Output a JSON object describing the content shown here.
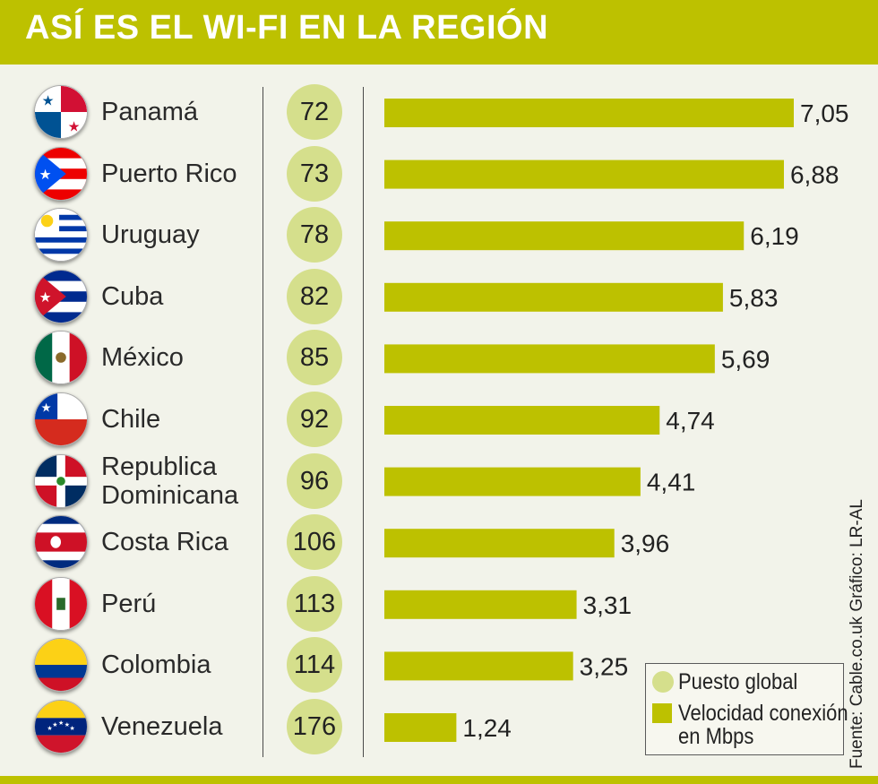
{
  "title": "ASÍ ES EL WI-FI EN LA REGIÓN",
  "legend": {
    "rank": "Puesto global",
    "speed_line1": "Velocidad conexión",
    "speed_line2": "en Mbps"
  },
  "source": "Fuente: Cable.co.uk   Gráfico: LR-AL",
  "colors": {
    "bar": "#bdc100",
    "rank_circle": "#d5df8c",
    "background": "#f2f3ea"
  },
  "chart_data": {
    "type": "bar",
    "orientation": "horizontal",
    "categories": [
      "Panamá",
      "Puerto Rico",
      "Uruguay",
      "Cuba",
      "México",
      "Chile",
      "Republica Dominicana",
      "Costa Rica",
      "Perú",
      "Colombia",
      "Venezuela"
    ],
    "category_lines": [
      [
        "Panamá"
      ],
      [
        "Puerto Rico"
      ],
      [
        "Uruguay"
      ],
      [
        "Cuba"
      ],
      [
        "México"
      ],
      [
        "Chile"
      ],
      [
        "Republica",
        "Dominicana"
      ],
      [
        "Costa Rica"
      ],
      [
        "Perú"
      ],
      [
        "Colombia"
      ],
      [
        "Venezuela"
      ]
    ],
    "flags": [
      "panama-flag-icon",
      "puerto-rico-flag-icon",
      "uruguay-flag-icon",
      "cuba-flag-icon",
      "mexico-flag-icon",
      "chile-flag-icon",
      "dominican-republic-flag-icon",
      "costa-rica-flag-icon",
      "peru-flag-icon",
      "colombia-flag-icon",
      "venezuela-flag-icon"
    ],
    "series": [
      {
        "name": "Puesto global",
        "values": [
          72,
          73,
          78,
          82,
          85,
          92,
          96,
          106,
          113,
          114,
          176
        ]
      },
      {
        "name": "Velocidad conexión en Mbps",
        "values": [
          7.05,
          6.88,
          6.19,
          5.83,
          5.69,
          4.74,
          4.41,
          3.96,
          3.31,
          3.25,
          1.24
        ]
      }
    ],
    "value_labels": [
      "7,05",
      "6,88",
      "6,19",
      "5,83",
      "5,69",
      "4,74",
      "4,41",
      "3,96",
      "3,31",
      "3,25",
      "1,24"
    ],
    "rank_labels": [
      "72",
      "73",
      "78",
      "82",
      "85",
      "92",
      "96",
      "106",
      "113",
      "114",
      "176"
    ],
    "xlim": [
      0,
      7.05
    ]
  }
}
